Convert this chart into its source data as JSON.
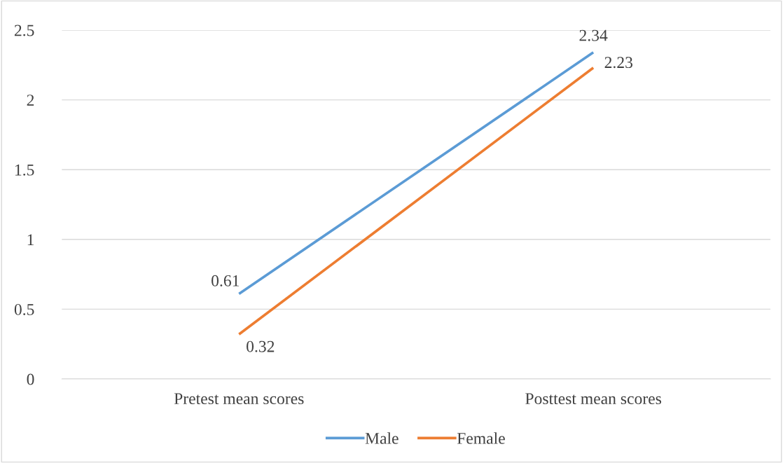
{
  "chart_data": {
    "type": "line",
    "categories": [
      "Pretest mean scores",
      "Posttest mean scores"
    ],
    "series": [
      {
        "name": "Male",
        "color": "#5b9bd5",
        "values": [
          0.61,
          2.34
        ]
      },
      {
        "name": "Female",
        "color": "#ed7d31",
        "values": [
          0.32,
          2.23
        ]
      }
    ],
    "ylim": [
      0,
      2.5
    ],
    "yticks": [
      0,
      0.5,
      1,
      1.5,
      2,
      2.5
    ],
    "grid": "y",
    "legend": "bottom",
    "data_labels": true,
    "marker": "none",
    "line_style": "solid"
  }
}
